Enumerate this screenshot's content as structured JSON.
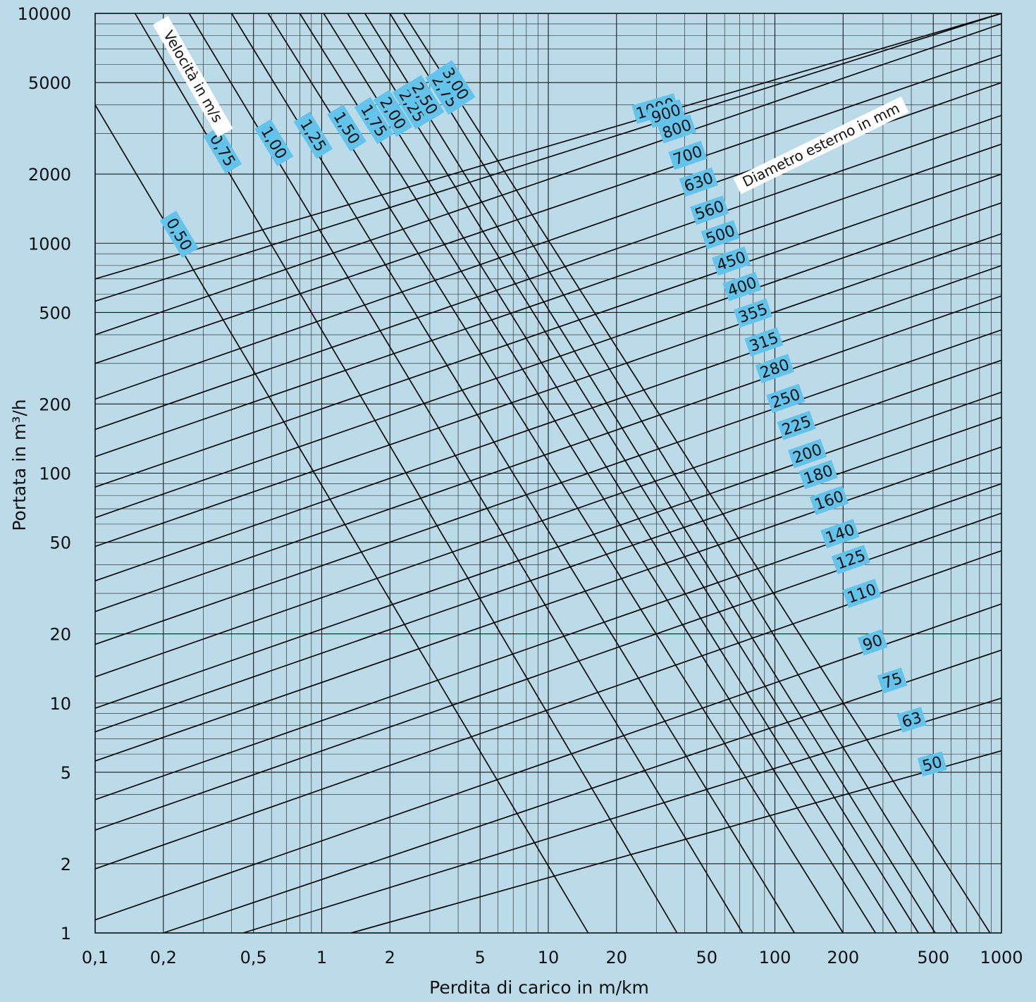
{
  "chart_data": {
    "type": "line",
    "title": "",
    "xlabel": "Perdita di carico in m/km",
    "ylabel": "Portata in m³/h",
    "x_scale": "log",
    "y_scale": "log",
    "xlim": [
      0.1,
      1000
    ],
    "ylim": [
      1,
      10000
    ],
    "grid": true,
    "x_ticks": [
      {
        "value": 0.1,
        "label": "0,1"
      },
      {
        "value": 0.2,
        "label": "0,2"
      },
      {
        "value": 0.5,
        "label": "0,5"
      },
      {
        "value": 1,
        "label": "1"
      },
      {
        "value": 2,
        "label": "2"
      },
      {
        "value": 5,
        "label": "5"
      },
      {
        "value": 10,
        "label": "10"
      },
      {
        "value": 20,
        "label": "20"
      },
      {
        "value": 50,
        "label": "50"
      },
      {
        "value": 100,
        "label": "100"
      },
      {
        "value": 200,
        "label": "200"
      },
      {
        "value": 500,
        "label": "500"
      },
      {
        "value": 1000,
        "label": "1000"
      }
    ],
    "y_ticks": [
      {
        "value": 1,
        "label": "1"
      },
      {
        "value": 2,
        "label": "2"
      },
      {
        "value": 5,
        "label": "5"
      },
      {
        "value": 10,
        "label": "10"
      },
      {
        "value": 20,
        "label": "20"
      },
      {
        "value": 50,
        "label": "50"
      },
      {
        "value": 100,
        "label": "100"
      },
      {
        "value": 200,
        "label": "200"
      },
      {
        "value": 500,
        "label": "500"
      },
      {
        "value": 1000,
        "label": "1000"
      },
      {
        "value": 2000,
        "label": "2000"
      },
      {
        "value": 5000,
        "label": "5000"
      },
      {
        "value": 10000,
        "label": "10000"
      }
    ],
    "annotations": {
      "velocity_title": "Velocità in m/s",
      "diameter_title": "Diametro esterno in mm"
    },
    "velocity_series": [
      {
        "label": "0,50",
        "points": [
          [
            0.1,
            4000
          ],
          [
            15,
            1
          ]
        ]
      },
      {
        "label": "0,75",
        "points": [
          [
            0.15,
            10000
          ],
          [
            37,
            1
          ]
        ]
      },
      {
        "label": "1,00",
        "points": [
          [
            0.26,
            10000
          ],
          [
            72,
            1
          ]
        ]
      },
      {
        "label": "1,25",
        "points": [
          [
            0.4,
            10000
          ],
          [
            122,
            1
          ]
        ]
      },
      {
        "label": "1,50",
        "points": [
          [
            0.58,
            10000
          ],
          [
            200,
            1
          ]
        ]
      },
      {
        "label": "1,75",
        "points": [
          [
            0.8,
            10000
          ],
          [
            278,
            1
          ]
        ]
      },
      {
        "label": "2,00",
        "points": [
          [
            1.02,
            10000
          ],
          [
            345,
            1
          ]
        ]
      },
      {
        "label": "2,25",
        "points": [
          [
            1.3,
            10000
          ],
          [
            430,
            1
          ]
        ]
      },
      {
        "label": "2,50",
        "points": [
          [
            1.55,
            10000
          ],
          [
            510,
            1
          ]
        ]
      },
      {
        "label": "2,75",
        "points": [
          [
            2.0,
            10000
          ],
          [
            640,
            1
          ]
        ]
      },
      {
        "label": "3,00",
        "points": [
          [
            2.3,
            10000
          ],
          [
            890,
            1
          ]
        ]
      }
    ],
    "diameter_series": [
      {
        "label": "1000",
        "points": [
          [
            0.1,
            700
          ],
          [
            1000,
            10000
          ]
        ]
      },
      {
        "label": "900",
        "points": [
          [
            0.1,
            560
          ],
          [
            1000,
            10000
          ]
        ]
      },
      {
        "label": "800",
        "points": [
          [
            0.1,
            400
          ],
          [
            1000,
            9000
          ]
        ]
      },
      {
        "label": "700",
        "points": [
          [
            0.1,
            300
          ],
          [
            1000,
            6600
          ]
        ]
      },
      {
        "label": "630",
        "points": [
          [
            0.1,
            210
          ],
          [
            1000,
            5000
          ]
        ]
      },
      {
        "label": "560",
        "points": [
          [
            0.1,
            155
          ],
          [
            1000,
            3600
          ]
        ]
      },
      {
        "label": "500",
        "points": [
          [
            0.1,
            118
          ],
          [
            1000,
            2700
          ]
        ]
      },
      {
        "label": "450",
        "points": [
          [
            0.1,
            87
          ],
          [
            1000,
            2000
          ]
        ]
      },
      {
        "label": "400",
        "points": [
          [
            0.1,
            64
          ],
          [
            1000,
            1500
          ]
        ]
      },
      {
        "label": "355",
        "points": [
          [
            0.1,
            48
          ],
          [
            1000,
            1100
          ]
        ]
      },
      {
        "label": "315",
        "points": [
          [
            0.1,
            34
          ],
          [
            1000,
            800
          ]
        ]
      },
      {
        "label": "280",
        "points": [
          [
            0.1,
            25
          ],
          [
            1000,
            590
          ]
        ]
      },
      {
        "label": "250",
        "points": [
          [
            0.1,
            18
          ],
          [
            1000,
            420
          ]
        ]
      },
      {
        "label": "225",
        "points": [
          [
            0.1,
            13
          ],
          [
            1000,
            310
          ]
        ]
      },
      {
        "label": "200",
        "points": [
          [
            0.1,
            9.5
          ],
          [
            1000,
            225
          ]
        ]
      },
      {
        "label": "180",
        "points": [
          [
            0.1,
            7.5
          ],
          [
            1000,
            175
          ]
        ]
      },
      {
        "label": "160",
        "points": [
          [
            0.1,
            5.6
          ],
          [
            1000,
            130
          ]
        ]
      },
      {
        "label": "140",
        "points": [
          [
            0.1,
            3.8
          ],
          [
            1000,
            90
          ]
        ]
      },
      {
        "label": "125",
        "points": [
          [
            0.1,
            2.8
          ],
          [
            1000,
            67
          ]
        ]
      },
      {
        "label": "110",
        "points": [
          [
            0.1,
            1.9
          ],
          [
            1000,
            46
          ]
        ]
      },
      {
        "label": "90",
        "points": [
          [
            0.1,
            1.14
          ],
          [
            1000,
            27
          ]
        ]
      },
      {
        "label": "75",
        "points": [
          [
            0.2,
            1
          ],
          [
            1000,
            17
          ]
        ]
      },
      {
        "label": "63",
        "points": [
          [
            0.45,
            1
          ],
          [
            1000,
            10.5
          ]
        ]
      },
      {
        "label": "50",
        "points": [
          [
            1.35,
            1
          ],
          [
            1000,
            6.2
          ]
        ]
      }
    ]
  }
}
